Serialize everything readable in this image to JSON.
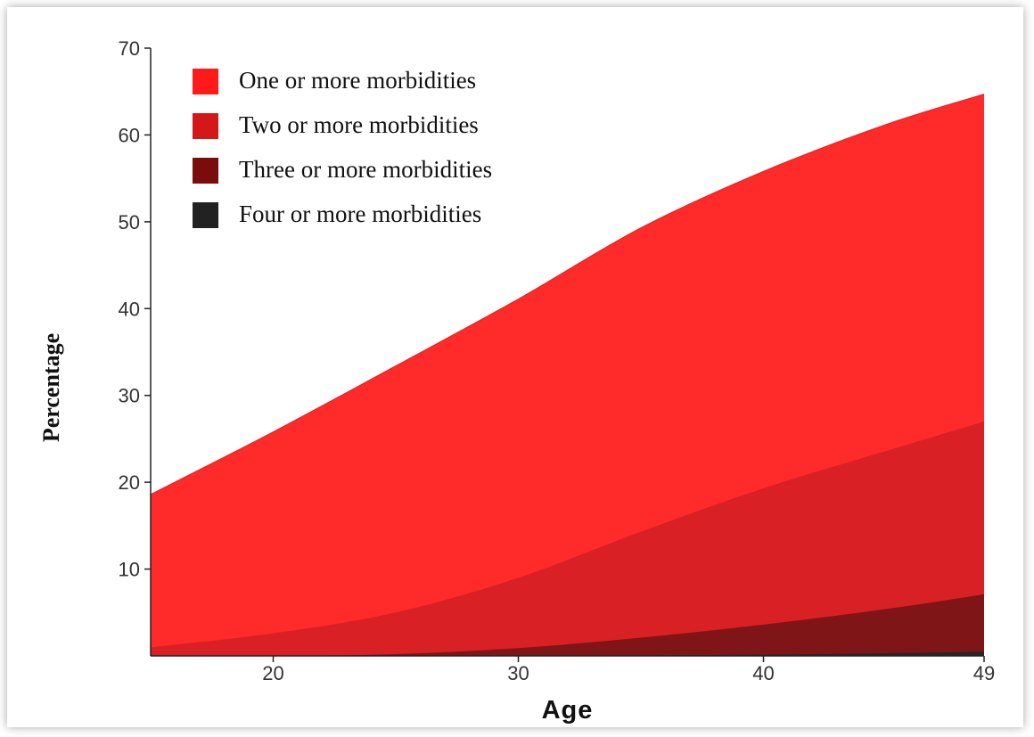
{
  "chart_data": {
    "type": "area",
    "title": "",
    "xlabel": "Age",
    "ylabel": "Percentage",
    "xlim": [
      15,
      49
    ],
    "ylim": [
      0,
      70
    ],
    "x_ticks": [
      20,
      30,
      40,
      49
    ],
    "y_ticks": [
      10,
      20,
      30,
      40,
      50,
      60,
      70
    ],
    "grid": false,
    "legend_position": "top-left",
    "x": [
      15,
      20,
      25,
      30,
      35,
      40,
      45,
      49
    ],
    "series": [
      {
        "name": "One or more morbidities",
        "color": "#ff2a2a",
        "legend_color": "#ff1a1a",
        "values": [
          18.6,
          25.8,
          33.4,
          41.1,
          49.3,
          55.8,
          61.2,
          64.7
        ]
      },
      {
        "name": "Two or more morbidities",
        "color": "#d92024",
        "legend_color": "#d41818",
        "values": [
          1.0,
          2.6,
          5.0,
          9.0,
          14.3,
          19.3,
          23.6,
          27.0
        ]
      },
      {
        "name": "Three or more morbidities",
        "color": "#801517",
        "legend_color": "#7a0c0c",
        "values": [
          0.0,
          0.0,
          0.2,
          0.9,
          2.1,
          3.6,
          5.4,
          7.1
        ]
      },
      {
        "name": "Four or more morbidities",
        "color": "#262626",
        "legend_color": "#222222",
        "values": [
          0.0,
          0.0,
          0.0,
          0.0,
          0.05,
          0.15,
          0.3,
          0.5
        ]
      }
    ]
  }
}
